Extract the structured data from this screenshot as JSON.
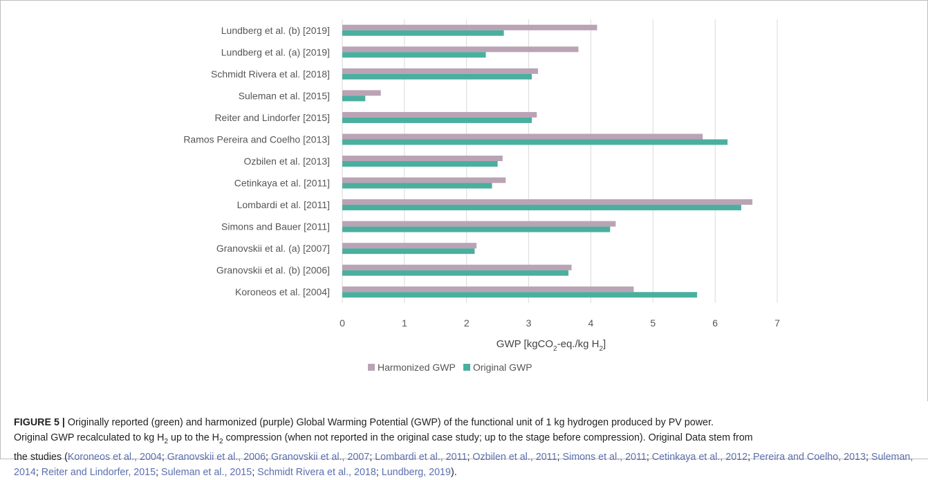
{
  "chart_data": {
    "type": "bar",
    "orientation": "horizontal",
    "categories": [
      "Lundberg et al. (b) [2019]",
      "Lundberg et al. (a) [2019]",
      "Schmidt Rivera et al. [2018]",
      "Suleman et al. [2015]",
      "Reiter and Lindorfer [2015]",
      "Ramos Pereira and Coelho [2013]",
      "Ozbilen et al. [2013]",
      "Cetinkaya et al. [2011]",
      "Lombardi et al. [2011]",
      "Simons and Bauer [2011]",
      "Granovskii et al. (a) [2007]",
      "Granovskii et al. (b) [2006]",
      "Koroneos et al. [2004]"
    ],
    "series": [
      {
        "name": "Harmonized GWP",
        "color": "#b9a3b4",
        "values": [
          4.1,
          3.8,
          3.15,
          0.62,
          3.13,
          5.8,
          2.58,
          2.63,
          6.6,
          4.4,
          2.16,
          3.69,
          4.69
        ]
      },
      {
        "name": "Original GWP",
        "color": "#4aaf9f",
        "values": [
          2.6,
          2.31,
          3.05,
          0.37,
          3.05,
          6.2,
          2.5,
          2.41,
          6.42,
          4.31,
          2.13,
          3.64,
          5.71
        ]
      }
    ],
    "xlim": [
      0,
      7
    ],
    "xticks": [
      "0",
      "1",
      "2",
      "3",
      "4",
      "5",
      "6",
      "7"
    ],
    "xlabel": {
      "main": "GWP [kgCO",
      "sub1": "2",
      "mid": "-eq./kg H",
      "sub2": "2",
      "end": "]"
    },
    "grid": true,
    "legend_position": "bottom"
  },
  "caption": {
    "label": "FIGURE 5 |",
    "text_line1": " Originally reported (green) and harmonized (purple) Global Warming Potential (GWP) of the functional unit of 1 kg hydrogen produced by PV power.",
    "l2_a": "Original GWP recalculated to kg H",
    "l2_sub1": "2",
    "l2_b": " up to the H",
    "l2_sub2": "2",
    "l2_c": " compression (when not reported in the original case study; up to the stage before compression). Original Data stem from",
    "l3_a": "the studies (",
    "refs": [
      "Koroneos et al., 2004",
      "Granovskii et al., 2006",
      "Granovskii et al., 2007",
      "Lombardi et al., 2011",
      "Ozbilen et al., 2011",
      "Simons et al., 2011",
      "Cetinkaya et al., 2012",
      "Pereira and Coelho, 2013",
      "Suleman, 2014",
      "Reiter and Lindorfer, 2015",
      "Suleman et al., 2015",
      "Schmidt Rivera et al., 2018",
      "Lundberg, 2019"
    ],
    "sep": "; ",
    "end": ")."
  }
}
